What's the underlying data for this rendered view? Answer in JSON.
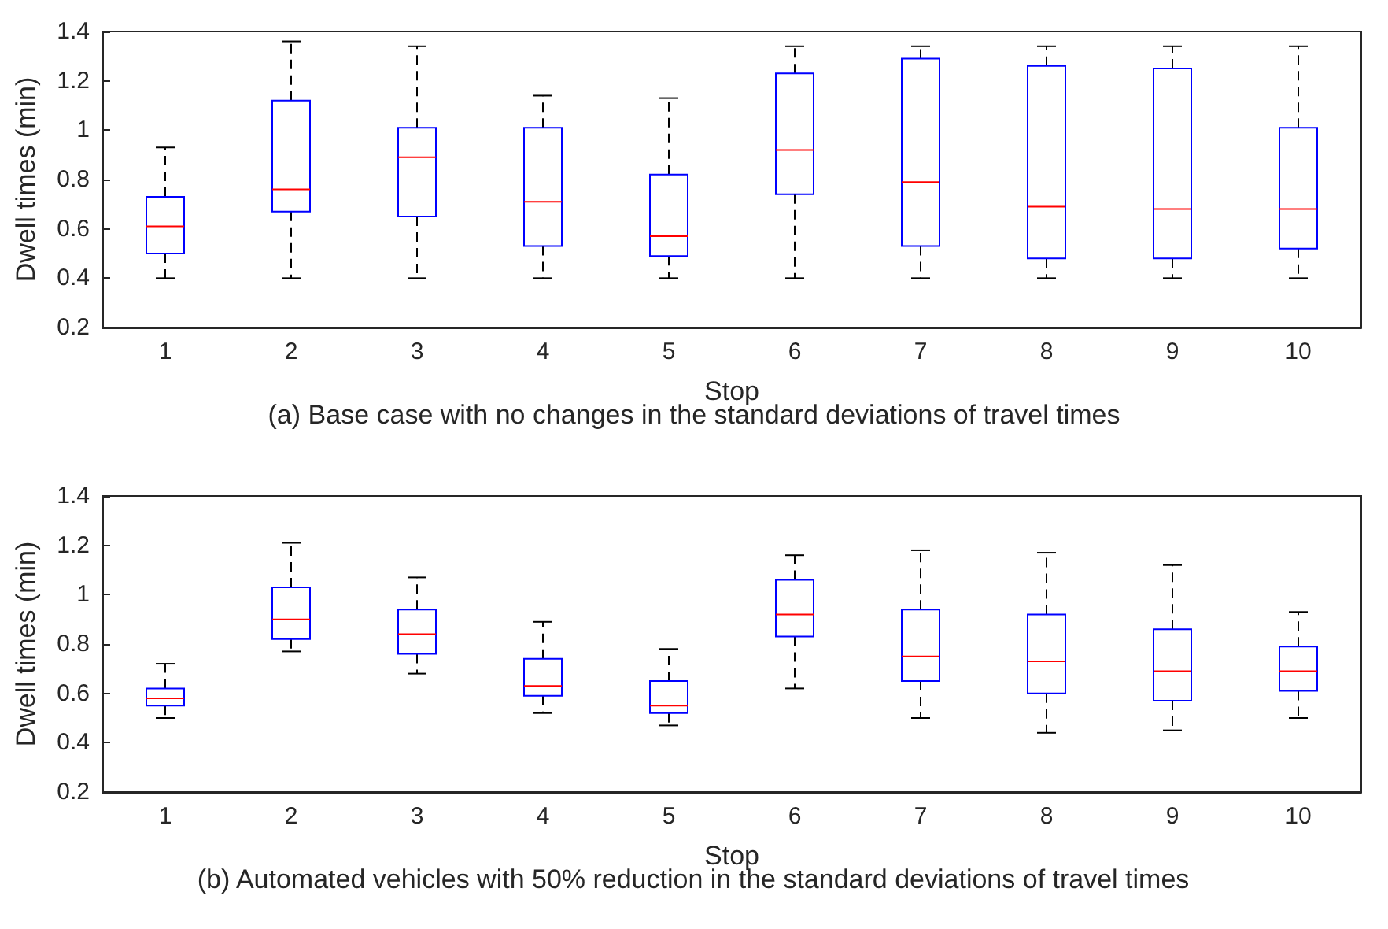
{
  "chart_data": [
    {
      "type": "box",
      "xlabel": "Stop",
      "ylabel": "Dwell times (min)",
      "annotations": [
        "(a) Base case with no changes in the standard deviations of travel times"
      ],
      "categories": [
        "1",
        "2",
        "3",
        "4",
        "5",
        "6",
        "7",
        "8",
        "9",
        "10"
      ],
      "ylim": [
        0.2,
        1.4
      ],
      "yticks": [
        0.2,
        0.4,
        0.6,
        0.8,
        1,
        1.2,
        1.4
      ],
      "grid": false,
      "series": [
        {
          "color": "#0000ff",
          "boxes": [
            {
              "low": 0.4,
              "q1": 0.5,
              "median": 0.61,
              "q3": 0.73,
              "high": 0.93
            },
            {
              "low": 0.4,
              "q1": 0.67,
              "median": 0.76,
              "q3": 1.12,
              "high": 1.36
            },
            {
              "low": 0.4,
              "q1": 0.65,
              "median": 0.89,
              "q3": 1.01,
              "high": 1.34
            },
            {
              "low": 0.4,
              "q1": 0.53,
              "median": 0.71,
              "q3": 1.01,
              "high": 1.14
            },
            {
              "low": 0.4,
              "q1": 0.49,
              "median": 0.57,
              "q3": 0.82,
              "high": 1.13
            },
            {
              "low": 0.4,
              "q1": 0.74,
              "median": 0.92,
              "q3": 1.23,
              "high": 1.34
            },
            {
              "low": 0.4,
              "q1": 0.53,
              "median": 0.79,
              "q3": 1.29,
              "high": 1.34
            },
            {
              "low": 0.4,
              "q1": 0.48,
              "median": 0.69,
              "q3": 1.26,
              "high": 1.34
            },
            {
              "low": 0.4,
              "q1": 0.48,
              "median": 0.68,
              "q3": 1.25,
              "high": 1.34
            },
            {
              "low": 0.4,
              "q1": 0.52,
              "median": 0.68,
              "q3": 1.01,
              "high": 1.34
            }
          ]
        }
      ]
    },
    {
      "type": "box",
      "xlabel": "Stop",
      "ylabel": "Dwell times (min)",
      "annotations": [
        "(b) Automated vehicles with 50% reduction in the standard deviations of travel times"
      ],
      "categories": [
        "1",
        "2",
        "3",
        "4",
        "5",
        "6",
        "7",
        "8",
        "9",
        "10"
      ],
      "ylim": [
        0.2,
        1.4
      ],
      "yticks": [
        0.2,
        0.4,
        0.6,
        0.8,
        1,
        1.2,
        1.4
      ],
      "grid": false,
      "series": [
        {
          "color": "#0000ff",
          "boxes": [
            {
              "low": 0.5,
              "q1": 0.55,
              "median": 0.58,
              "q3": 0.62,
              "high": 0.72
            },
            {
              "low": 0.77,
              "q1": 0.82,
              "median": 0.9,
              "q3": 1.03,
              "high": 1.21
            },
            {
              "low": 0.68,
              "q1": 0.76,
              "median": 0.84,
              "q3": 0.94,
              "high": 1.07
            },
            {
              "low": 0.52,
              "q1": 0.59,
              "median": 0.63,
              "q3": 0.74,
              "high": 0.89
            },
            {
              "low": 0.47,
              "q1": 0.52,
              "median": 0.55,
              "q3": 0.65,
              "high": 0.78
            },
            {
              "low": 0.62,
              "q1": 0.83,
              "median": 0.92,
              "q3": 1.06,
              "high": 1.16
            },
            {
              "low": 0.5,
              "q1": 0.65,
              "median": 0.75,
              "q3": 0.94,
              "high": 1.18
            },
            {
              "low": 0.44,
              "q1": 0.6,
              "median": 0.73,
              "q3": 0.92,
              "high": 1.17
            },
            {
              "low": 0.45,
              "q1": 0.57,
              "median": 0.69,
              "q3": 0.86,
              "high": 1.12
            },
            {
              "low": 0.5,
              "q1": 0.61,
              "median": 0.69,
              "q3": 0.79,
              "high": 0.93
            }
          ]
        }
      ]
    }
  ]
}
